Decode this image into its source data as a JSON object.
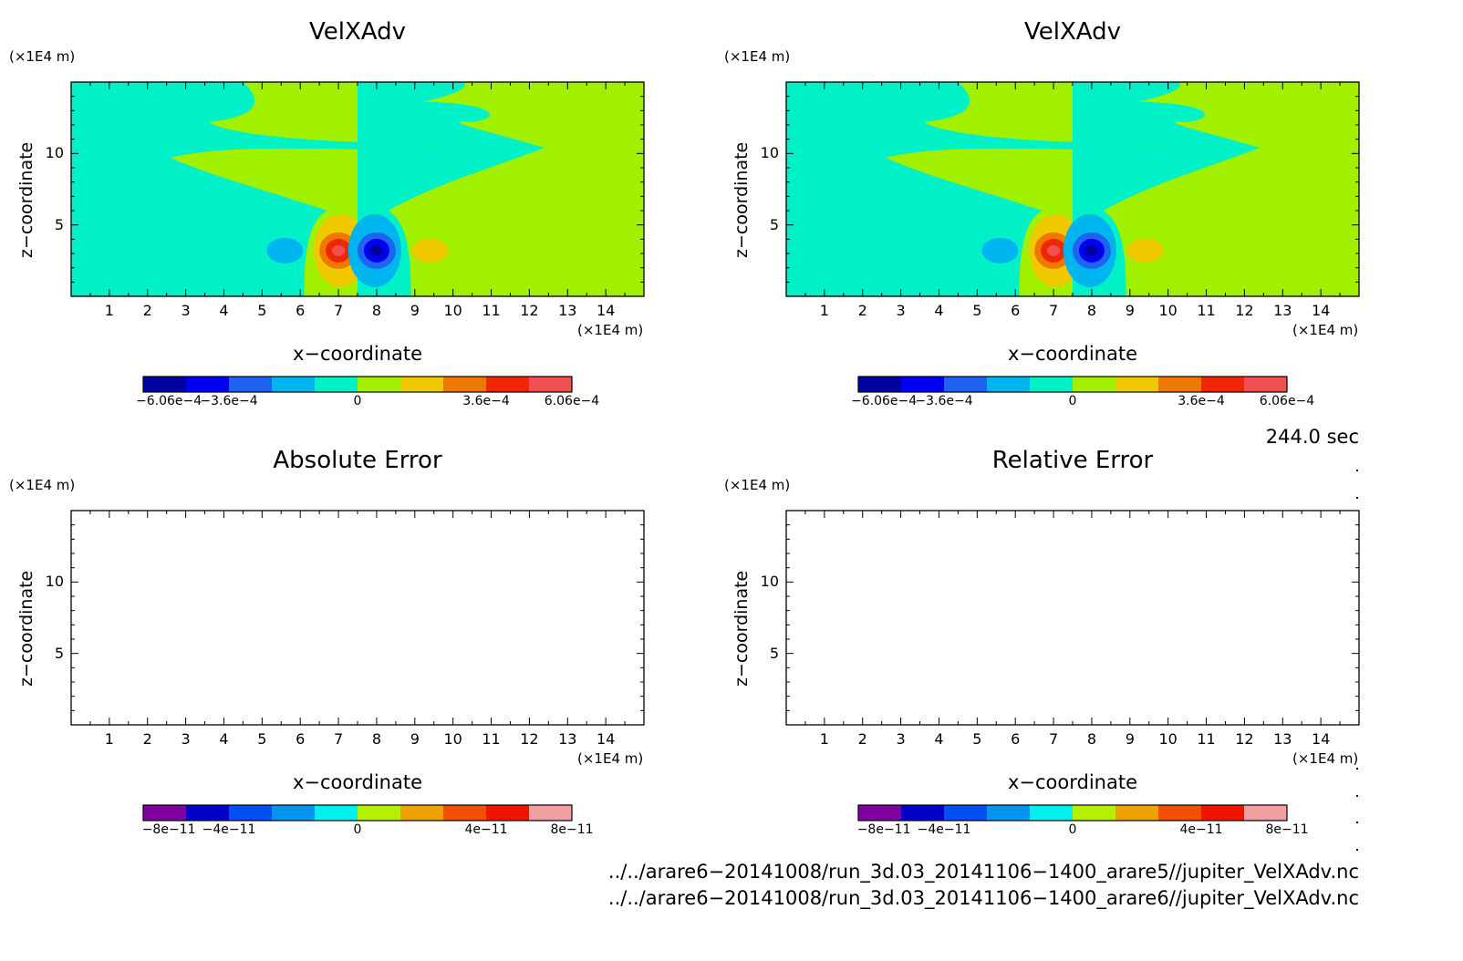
{
  "panels": [
    {
      "title": "VelXAdv",
      "xlabel": "x−coordinate",
      "ylabel": "z−coordinate",
      "xunit": "(×1E4 m)",
      "zunit": "(×1E4 m)",
      "filled": true,
      "xticks": [
        "1",
        "2",
        "3",
        "4",
        "5",
        "6",
        "7",
        "8",
        "9",
        "10",
        "11",
        "12",
        "13",
        "14"
      ],
      "yticks": [
        "5",
        "10"
      ],
      "colorbar": {
        "colors": [
          "#0000a0",
          "#0000f0",
          "#1e64f0",
          "#00b4f0",
          "#00f0c8",
          "#a0f000",
          "#f0c800",
          "#f07800",
          "#f02800",
          "#f05050"
        ],
        "labels": [
          "−6.06e−4",
          "−3.6e−4",
          "0",
          "3.6e−4",
          "6.06e−4"
        ]
      }
    },
    {
      "title": "VelXAdv",
      "xlabel": "x−coordinate",
      "ylabel": "z−coordinate",
      "xunit": "(×1E4 m)",
      "zunit": "(×1E4 m)",
      "filled": true,
      "xticks": [
        "1",
        "2",
        "3",
        "4",
        "5",
        "6",
        "7",
        "8",
        "9",
        "10",
        "11",
        "12",
        "13",
        "14"
      ],
      "yticks": [
        "5",
        "10"
      ],
      "colorbar": {
        "colors": [
          "#0000a0",
          "#0000f0",
          "#1e64f0",
          "#00b4f0",
          "#00f0c8",
          "#a0f000",
          "#f0c800",
          "#f07800",
          "#f02800",
          "#f05050"
        ],
        "labels": [
          "−6.06e−4",
          "−3.6e−4",
          "0",
          "3.6e−4",
          "6.06e−4"
        ]
      }
    },
    {
      "title": "Absolute Error",
      "xlabel": "x−coordinate",
      "ylabel": "z−coordinate",
      "xunit": "(×1E4 m)",
      "zunit": "(×1E4 m)",
      "filled": false,
      "xticks": [
        "1",
        "2",
        "3",
        "4",
        "5",
        "6",
        "7",
        "8",
        "9",
        "10",
        "11",
        "12",
        "13",
        "14"
      ],
      "yticks": [
        "5",
        "10"
      ],
      "colorbar": {
        "colors": [
          "#8000a0",
          "#0000c8",
          "#0050f0",
          "#0096f0",
          "#00f0f0",
          "#b4f000",
          "#f0a000",
          "#f05000",
          "#f01400",
          "#f0a0a0"
        ],
        "labels": [
          "−8e−11",
          "−4e−11",
          "0",
          "4e−11",
          "8e−11"
        ]
      }
    },
    {
      "title": "Relative Error",
      "xlabel": "x−coordinate",
      "ylabel": "z−coordinate",
      "xunit": "(×1E4 m)",
      "zunit": "(×1E4 m)",
      "filled": false,
      "xticks": [
        "1",
        "2",
        "3",
        "4",
        "5",
        "6",
        "7",
        "8",
        "9",
        "10",
        "11",
        "12",
        "13",
        "14"
      ],
      "yticks": [
        "5",
        "10"
      ],
      "colorbar": {
        "colors": [
          "#8000a0",
          "#0000c8",
          "#0050f0",
          "#0096f0",
          "#00f0f0",
          "#b4f000",
          "#f0a000",
          "#f05000",
          "#f01400",
          "#f0a0a0"
        ],
        "labels": [
          "−8e−11",
          "−4e−11",
          "0",
          "4e−11",
          "8e−11"
        ]
      }
    }
  ],
  "time_label": "244.0 sec",
  "file_paths": [
    "../../arare6−20141008/run_3d.03_20141106−1400_arare5//jupiter_VelXAdv.nc",
    "../../arare6−20141008/run_3d.03_20141106−1400_arare6//jupiter_VelXAdv.nc"
  ],
  "chart_data": [
    {
      "type": "heatmap",
      "title": "VelXAdv",
      "xlabel": "x−coordinate",
      "ylabel": "z−coordinate",
      "xunit": "(×1E4 m)",
      "yunit": "(×1E4 m)",
      "xlim": [
        0,
        15
      ],
      "ylim": [
        0,
        15
      ],
      "color_range": [
        -0.000606,
        0.000606
      ],
      "features": [
        {
          "x": 7,
          "z": 3.2,
          "sign": "positive max"
        },
        {
          "x": 8,
          "z": 3.2,
          "sign": "negative min"
        },
        {
          "x": 5.6,
          "z": 3.2,
          "sign": "negative weak"
        },
        {
          "x": 9.4,
          "z": 3.2,
          "sign": "positive weak"
        }
      ]
    },
    {
      "type": "heatmap",
      "title": "VelXAdv",
      "xlabel": "x−coordinate",
      "ylabel": "z−coordinate",
      "xunit": "(×1E4 m)",
      "yunit": "(×1E4 m)",
      "xlim": [
        0,
        15
      ],
      "ylim": [
        0,
        15
      ],
      "color_range": [
        -0.000606,
        0.000606
      ]
    },
    {
      "type": "heatmap",
      "title": "Absolute Error",
      "xlim": [
        0,
        15
      ],
      "ylim": [
        0,
        15
      ],
      "color_range": [
        -1e-10,
        1e-10
      ],
      "values": "all zero (blank)"
    },
    {
      "type": "heatmap",
      "title": "Relative Error",
      "xlim": [
        0,
        15
      ],
      "ylim": [
        0,
        15
      ],
      "color_range": [
        -1e-10,
        1e-10
      ],
      "values": "all zero (blank)"
    }
  ]
}
